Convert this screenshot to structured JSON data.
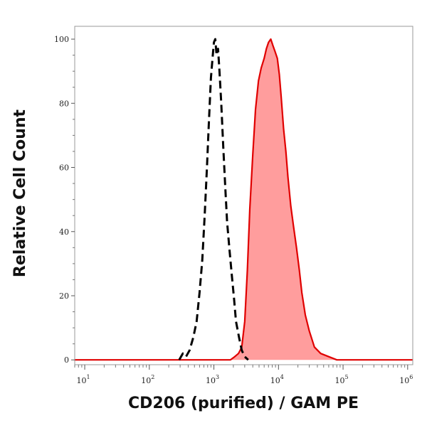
{
  "chart_data": {
    "type": "area",
    "title": "",
    "xlabel": "CD206 (purified) / GAM PE",
    "ylabel": "Relative Cell Count",
    "xscale": "log",
    "xlim": [
      7,
      1200000
    ],
    "ylim": [
      -1.5,
      104
    ],
    "x_ticks": [
      {
        "value": 10,
        "base": "10",
        "exp": "1"
      },
      {
        "value": 100,
        "base": "10",
        "exp": "2"
      },
      {
        "value": 1000,
        "base": "10",
        "exp": "3"
      },
      {
        "value": 10000,
        "base": "10",
        "exp": "4"
      },
      {
        "value": 100000,
        "base": "10",
        "exp": "5"
      },
      {
        "value": 1000000,
        "base": "10",
        "exp": "6"
      }
    ],
    "y_ticks": [
      {
        "value": 0,
        "label": "0"
      },
      {
        "value": 20,
        "label": "20"
      },
      {
        "value": 40,
        "label": "40"
      },
      {
        "value": 60,
        "label": "60"
      },
      {
        "value": 80,
        "label": "80"
      },
      {
        "value": 100,
        "label": "100"
      }
    ],
    "grid": false,
    "legend": "none",
    "series": [
      {
        "style": "dashed",
        "color": "#000000",
        "fill": "none",
        "points": [
          [
            290,
            0
          ],
          [
            330,
            2
          ],
          [
            370,
            1
          ],
          [
            420,
            3
          ],
          [
            480,
            7
          ],
          [
            540,
            12
          ],
          [
            600,
            21
          ],
          [
            660,
            31
          ],
          [
            720,
            45
          ],
          [
            780,
            60
          ],
          [
            840,
            75
          ],
          [
            900,
            88
          ],
          [
            960,
            95
          ],
          [
            1000,
            99
          ],
          [
            1050,
            100
          ],
          [
            1100,
            95
          ],
          [
            1160,
            97
          ],
          [
            1220,
            90
          ],
          [
            1300,
            80
          ],
          [
            1400,
            66
          ],
          [
            1500,
            54
          ],
          [
            1600,
            43
          ],
          [
            1750,
            34
          ],
          [
            1900,
            26
          ],
          [
            2050,
            19
          ],
          [
            2200,
            12
          ],
          [
            2450,
            7
          ],
          [
            2700,
            3
          ],
          [
            3000,
            1
          ],
          [
            3400,
            0
          ]
        ]
      },
      {
        "style": "solid",
        "color": "#e00000",
        "fill": "#ff9d9d",
        "points": [
          [
            7,
            0
          ],
          [
            1000,
            0
          ],
          [
            1800,
            0
          ],
          [
            2100,
            1
          ],
          [
            2400,
            2
          ],
          [
            2700,
            4
          ],
          [
            3000,
            12
          ],
          [
            3300,
            28
          ],
          [
            3600,
            47
          ],
          [
            4000,
            64
          ],
          [
            4400,
            78
          ],
          [
            4900,
            87
          ],
          [
            5400,
            91
          ],
          [
            6000,
            94
          ],
          [
            6500,
            97
          ],
          [
            7000,
            99
          ],
          [
            7600,
            100
          ],
          [
            8200,
            98
          ],
          [
            8900,
            96
          ],
          [
            9600,
            94
          ],
          [
            10300,
            89
          ],
          [
            11000,
            82
          ],
          [
            12000,
            72
          ],
          [
            13000,
            65
          ],
          [
            14000,
            57
          ],
          [
            15500,
            48
          ],
          [
            17000,
            42
          ],
          [
            19000,
            35
          ],
          [
            21000,
            28
          ],
          [
            23000,
            21
          ],
          [
            26000,
            14
          ],
          [
            30000,
            9
          ],
          [
            36000,
            4
          ],
          [
            45000,
            2
          ],
          [
            60000,
            1
          ],
          [
            80000,
            0
          ],
          [
            1200000,
            0
          ]
        ]
      }
    ]
  }
}
